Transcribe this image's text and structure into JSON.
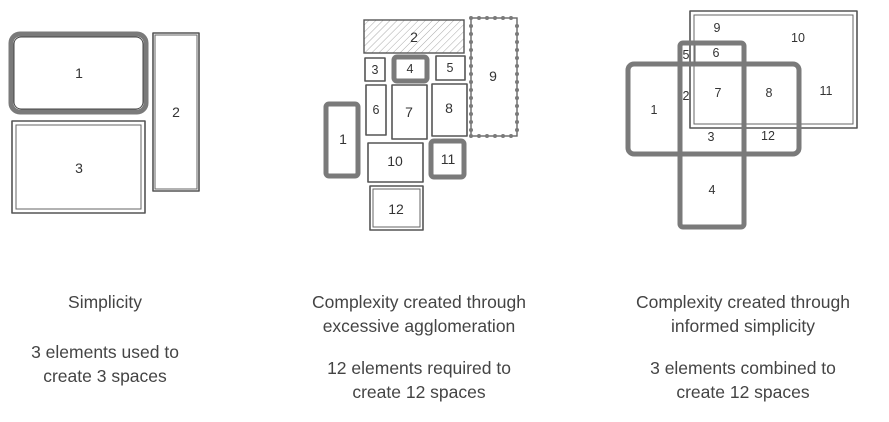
{
  "panels": [
    {
      "title_lines": [
        "Simplicity"
      ],
      "desc_lines": [
        "3 elements used to",
        "create 3 spaces"
      ],
      "box_labels": [
        "1",
        "2",
        "3"
      ]
    },
    {
      "title_lines": [
        "Complexity created through",
        "excessive agglomeration"
      ],
      "desc_lines": [
        "12 elements required to",
        "create 12 spaces"
      ],
      "box_labels": [
        "1",
        "2",
        "3",
        "4",
        "5",
        "6",
        "7",
        "8",
        "9",
        "10",
        "11",
        "12"
      ]
    },
    {
      "title_lines": [
        "Complexity created through",
        "informed simplicity"
      ],
      "desc_lines": [
        "3 elements combined to",
        "create 12 spaces"
      ],
      "space_labels": [
        "1",
        "2",
        "3",
        "4",
        "5",
        "6",
        "7",
        "8",
        "9",
        "10",
        "11",
        "12"
      ]
    }
  ],
  "colors": {
    "thick_stroke": "#7a7a7a",
    "thin_stroke": "#555555",
    "text": "#444444"
  }
}
